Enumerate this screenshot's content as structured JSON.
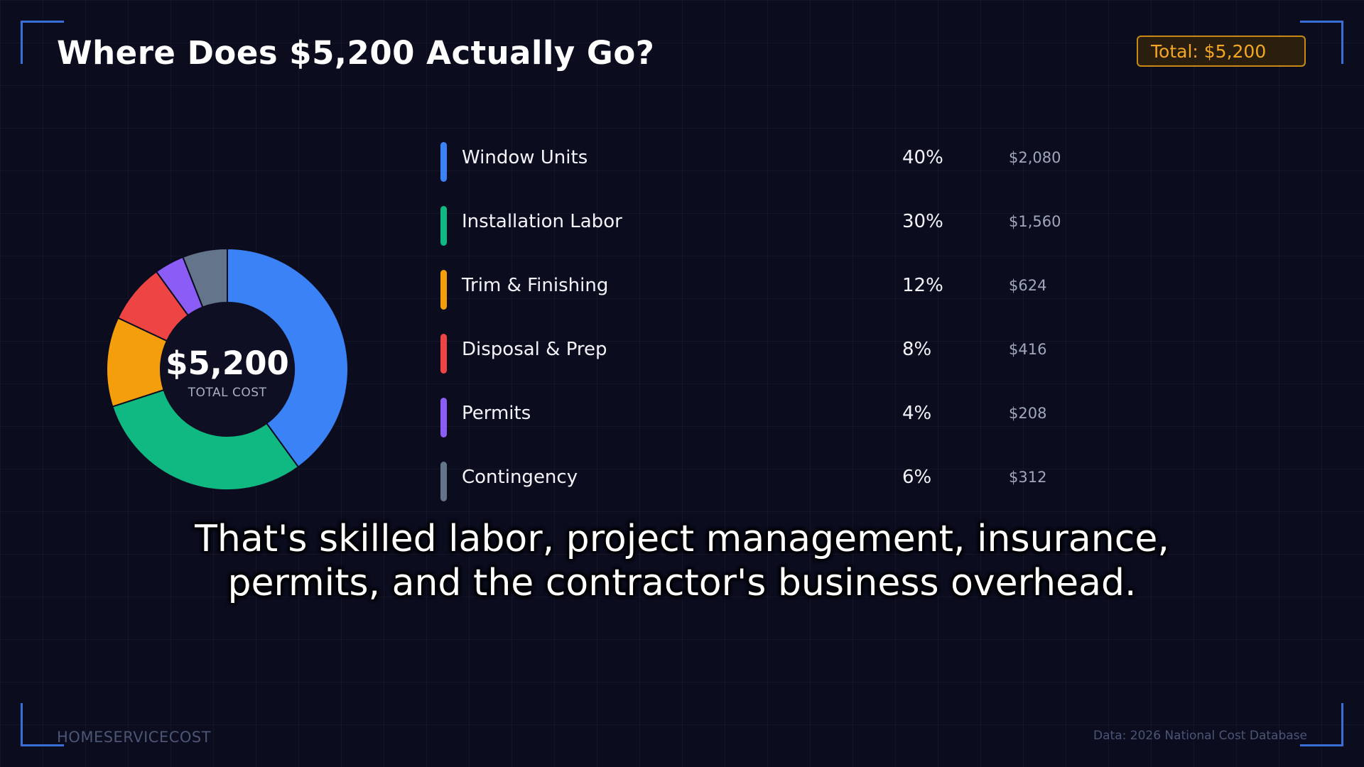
{
  "header": {
    "title": "Where Does $5,200 Actually Go?",
    "total_badge": "Total: $5,200"
  },
  "donut": {
    "center_value": "$5,200",
    "center_label": "TOTAL COST"
  },
  "chart_data": {
    "type": "pie",
    "variant": "donut",
    "title": "Where Does $5,200 Actually Go?",
    "total": 5200,
    "categories": [
      "Window Units",
      "Installation Labor",
      "Trim & Finishing",
      "Disposal & Prep",
      "Permits",
      "Contingency"
    ],
    "values": [
      40,
      30,
      12,
      8,
      4,
      6
    ],
    "amounts": [
      2080,
      1560,
      624,
      416,
      208,
      312
    ],
    "percent_labels": [
      "40%",
      "30%",
      "12%",
      "8%",
      "4%",
      "6%"
    ],
    "amount_labels": [
      "$2,080",
      "$1,560",
      "$624",
      "$416",
      "$208",
      "$312"
    ],
    "colors": [
      "#3b82f6",
      "#10b981",
      "#f59e0b",
      "#ef4444",
      "#8b5cf6",
      "#64748b"
    ],
    "legend_position": "right"
  },
  "caption": {
    "line1": "That's skilled labor, project management, insurance,",
    "line2": "permits, and the contractor's business overhead."
  },
  "footer": {
    "brand": "HOMESERVICECOST",
    "source": "Data: 2026 National Cost Database"
  }
}
